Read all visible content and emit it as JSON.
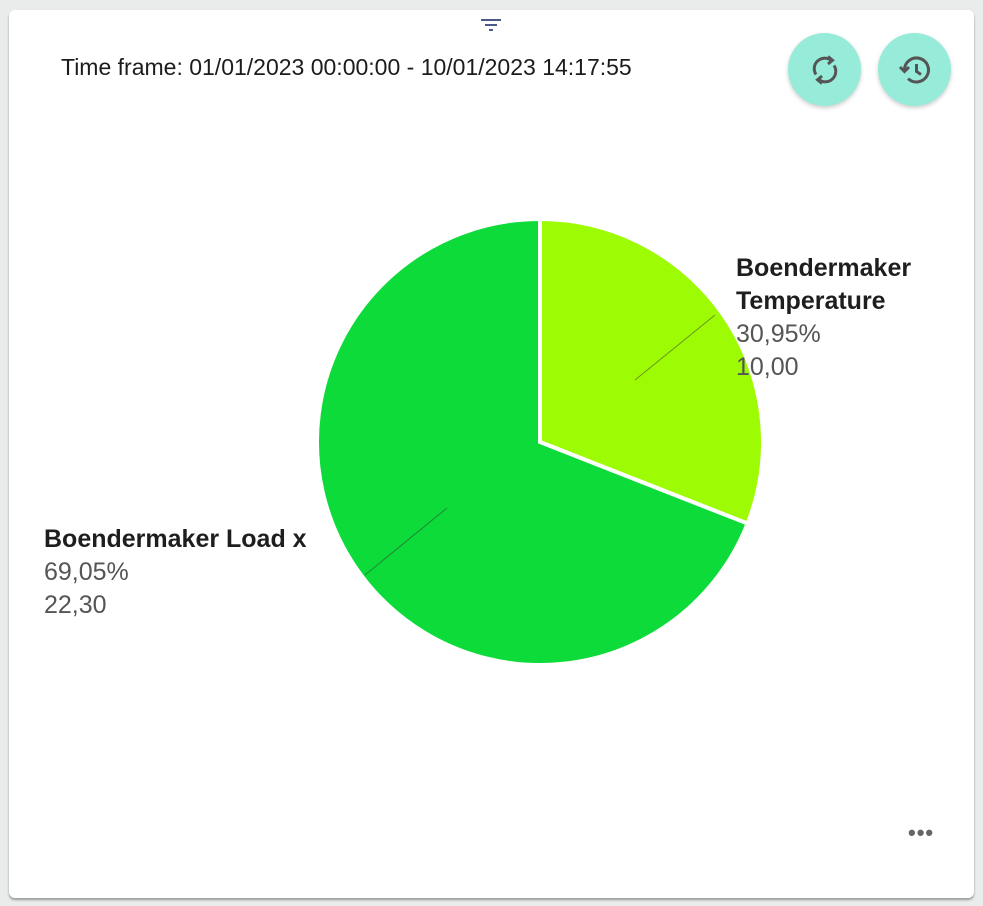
{
  "header": {
    "time_frame": "Time frame: 01/01/2023 00:00:00 - 10/01/2023 14:17:55",
    "buttons": [
      {
        "icon": "refresh-icon"
      },
      {
        "icon": "history-icon"
      }
    ],
    "filter_icon": "filter-icon",
    "more_icon": "more-horizontal-icon",
    "more_label": "•••"
  },
  "chart_data": {
    "type": "pie",
    "slices": [
      {
        "name": "Boendermaker Temperature",
        "name_lines": [
          "Boendermaker",
          "Temperature"
        ],
        "percent": "30,95%",
        "value": 10.0,
        "value_label": "10,00",
        "color": "#9dfb04"
      },
      {
        "name": "Boendermaker Load x",
        "name_lines": [
          "Boendermaker Load x"
        ],
        "percent": "69,05%",
        "value": 22.3,
        "value_label": "22,30",
        "color": "#0cdb3a"
      }
    ],
    "start_angle": "top, clockwise"
  }
}
